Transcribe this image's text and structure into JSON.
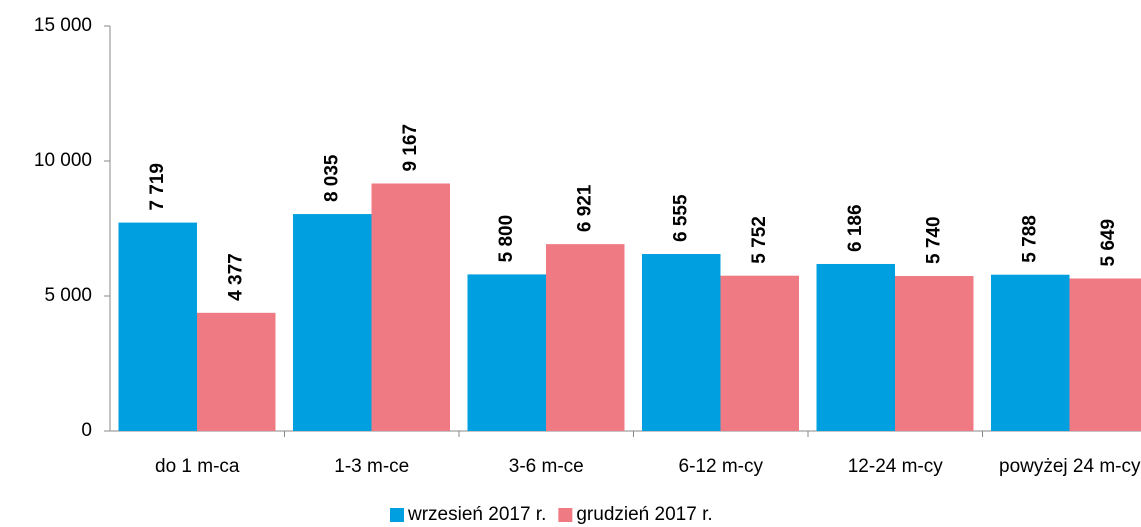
{
  "chart_data": {
    "type": "bar",
    "categories": [
      "do 1 m-ca",
      "1-3 m-ce",
      "3-6 m-ce",
      "6-12 m-cy",
      "12-24 m-cy",
      "powyżej 24 m-cy"
    ],
    "series": [
      {
        "name": "wrzesień 2017 r.",
        "color": "#00a0e0",
        "values": [
          7719,
          8035,
          5800,
          6555,
          6186,
          5788
        ],
        "value_labels": [
          "7 719",
          "8 035",
          "5 800",
          "6 555",
          "6 186",
          "5 788"
        ]
      },
      {
        "name": "grudzień 2017 r.",
        "color": "#f07a84",
        "values": [
          4377,
          9167,
          6921,
          5752,
          5740,
          5649
        ],
        "value_labels": [
          "4 377",
          "9 167",
          "6 921",
          "5 752",
          "5 740",
          "5 649"
        ]
      }
    ],
    "ylim": [
      0,
      15000
    ],
    "yticks": [
      {
        "value": 0,
        "label": "0"
      },
      {
        "value": 5000,
        "label": "5 000"
      },
      {
        "value": 10000,
        "label": "10 000"
      },
      {
        "value": 15000,
        "label": "15 000"
      }
    ],
    "legend": "bottom"
  }
}
